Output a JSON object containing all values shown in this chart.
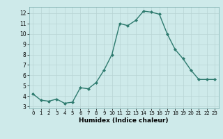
{
  "x": [
    0,
    1,
    2,
    3,
    4,
    5,
    6,
    7,
    8,
    9,
    10,
    11,
    12,
    13,
    14,
    15,
    16,
    17,
    18,
    19,
    20,
    21,
    22,
    23
  ],
  "y": [
    4.2,
    3.6,
    3.5,
    3.7,
    3.3,
    3.4,
    4.8,
    4.7,
    5.3,
    6.5,
    8.0,
    11.0,
    10.8,
    11.3,
    12.2,
    12.1,
    11.9,
    10.0,
    8.5,
    7.6,
    6.5,
    5.6,
    5.6,
    5.6
  ],
  "xlabel": "Humidex (Indice chaleur)",
  "line_color": "#2d7a6e",
  "marker_color": "#2d7a6e",
  "bg_color": "#ceeaea",
  "grid_color": "#b8d4d4",
  "xlim": [
    -0.5,
    23.5
  ],
  "ylim": [
    2.8,
    12.6
  ],
  "yticks": [
    3,
    4,
    5,
    6,
    7,
    8,
    9,
    10,
    11,
    12
  ],
  "xticks": [
    0,
    1,
    2,
    3,
    4,
    5,
    6,
    7,
    8,
    9,
    10,
    11,
    12,
    13,
    14,
    15,
    16,
    17,
    18,
    19,
    20,
    21,
    22,
    23
  ]
}
